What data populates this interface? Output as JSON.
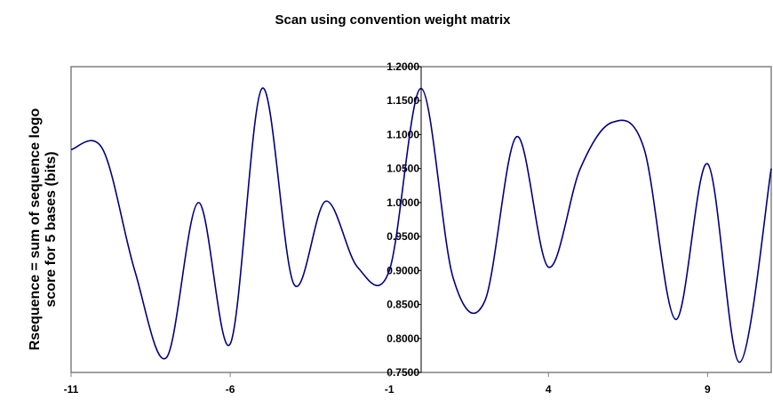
{
  "chart_data": {
    "type": "line",
    "title": "Scan using convention weight matrix",
    "xlabel": "",
    "ylabel_lines": [
      "Rsequence = sum of sequence logo",
      "score for 5 bases (bits)"
    ],
    "xlim": [
      -11,
      11
    ],
    "ylim": [
      0.75,
      1.2
    ],
    "x_ticks": [
      -11,
      -6,
      -1,
      4,
      9
    ],
    "x_tick_labels": [
      "-11",
      "-6",
      "-1",
      "4",
      "9"
    ],
    "y_ticks": [
      0.75,
      0.8,
      0.85,
      0.9,
      0.95,
      1.0,
      1.05,
      1.1,
      1.15,
      1.2
    ],
    "y_tick_labels": [
      "0.7500",
      "0.8000",
      "0.8500",
      "0.9000",
      "0.9500",
      "1.0000",
      "1.0500",
      "1.1000",
      "1.1500",
      "1.2000"
    ],
    "y_axis_crosses_x_at": 0,
    "grid": false,
    "line_color": "#000080",
    "series": [
      {
        "x": [
          -11,
          -10,
          -9,
          -8,
          -7,
          -6,
          -5,
          -4,
          -3,
          -2,
          -1,
          0,
          1,
          2,
          3,
          4,
          5,
          6,
          7,
          8,
          9,
          10,
          11
        ],
        "y": [
          1.078,
          1.078,
          0.9,
          0.772,
          1.0,
          0.792,
          1.168,
          0.88,
          1.002,
          0.905,
          0.9,
          1.168,
          0.89,
          0.855,
          1.097,
          0.905,
          1.05,
          1.118,
          1.08,
          0.828,
          1.057,
          0.765,
          1.05
        ]
      }
    ]
  }
}
